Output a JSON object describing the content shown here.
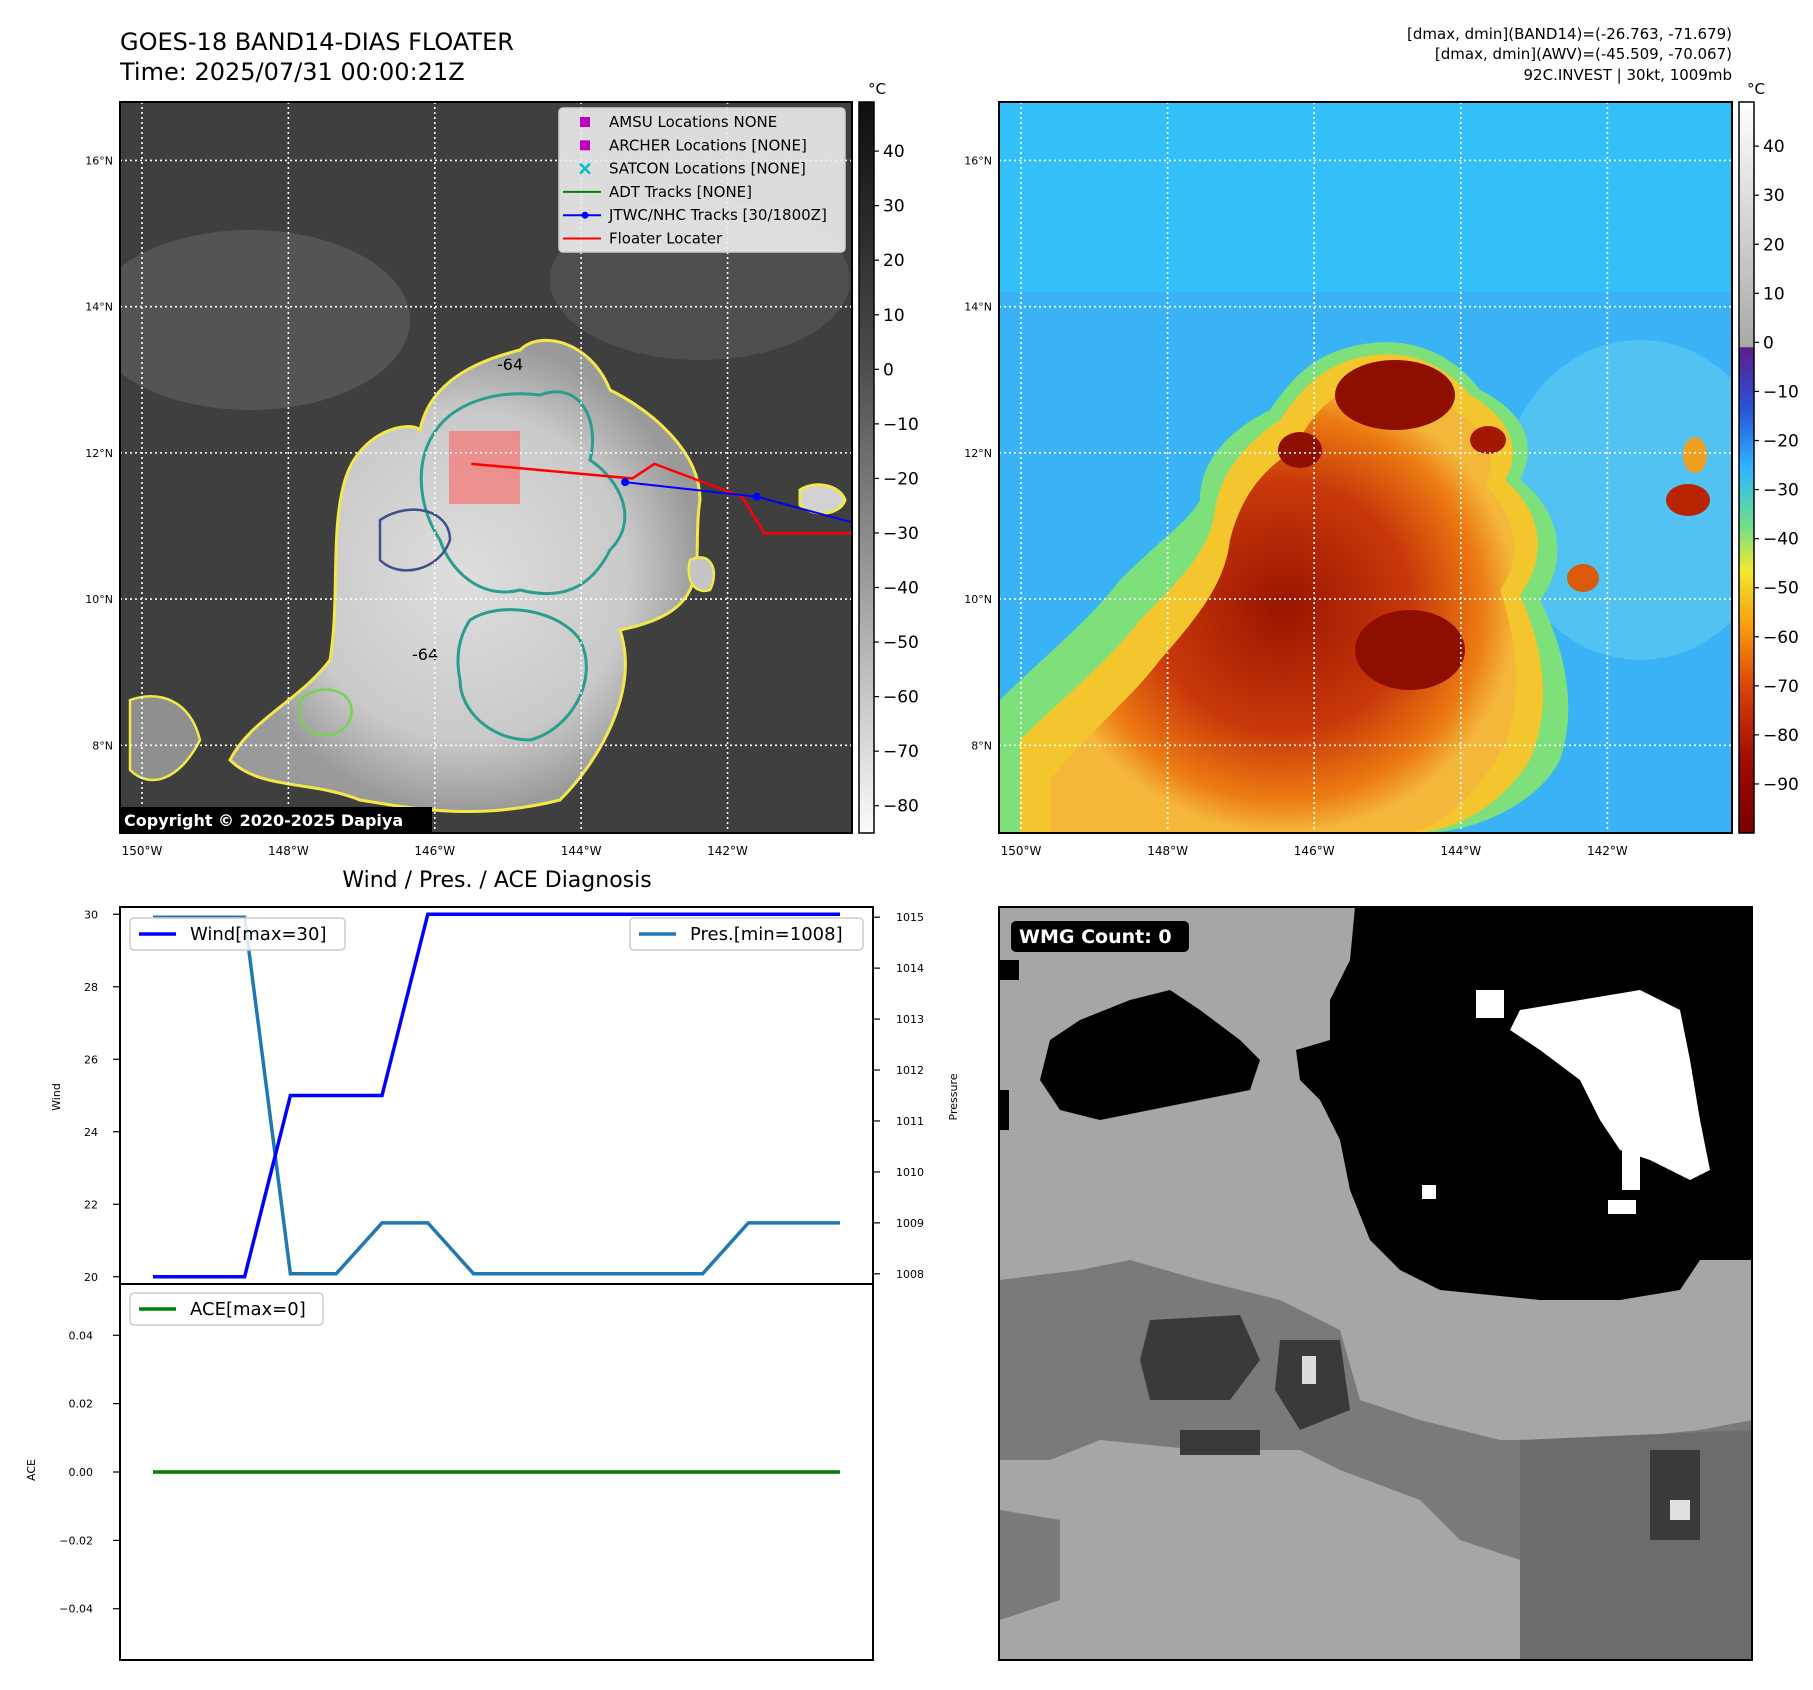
{
  "header": {
    "title": "GOES-18 BAND14-DIAS FLOATER",
    "time": "Time: 2025/07/31 00:00:21Z",
    "info": [
      "[dmax, dmin](BAND14)=(-26.763, -71.679)",
      "[dmax, dmin](AWV)=(-45.509, -70.067)",
      "92C.INVEST | 30kt, 1009mb"
    ]
  },
  "map": {
    "lat_labels": [
      "16°N",
      "14°N",
      "12°N",
      "10°N",
      "8°N"
    ],
    "lat_values": [
      16,
      14,
      12,
      10,
      8
    ],
    "lon_labels": [
      "150°W",
      "148°W",
      "146°W",
      "144°W",
      "142°W"
    ],
    "lon_values": [
      -150,
      -148,
      -146,
      -144,
      -142
    ],
    "lat_range": [
      6.8,
      16.8
    ],
    "lon_range": [
      -150.3,
      -140.3
    ],
    "copyright": "Copyright © 2020-2025 Dapiya",
    "contour_label": "-64"
  },
  "legend": [
    {
      "label": "AMSU Locations NONE",
      "marker": "square",
      "color": "#bf00bf"
    },
    {
      "label": "ARCHER Locations [NONE]",
      "marker": "square",
      "color": "#bf00bf"
    },
    {
      "label": "SATCON Locations [NONE]",
      "marker": "x",
      "color": "#00bfbf"
    },
    {
      "label": "ADT Tracks [NONE]",
      "marker": "line",
      "color": "#008000"
    },
    {
      "label": "JTWC/NHC Tracks [30/1800Z]",
      "marker": "line-dot",
      "color": "#0000ff"
    },
    {
      "label": "Floater Locater",
      "marker": "line",
      "color": "#ff0000"
    }
  ],
  "tracks": {
    "jtwc": {
      "lon": [
        -143.4,
        -141.6,
        -140.3
      ],
      "lat": [
        11.6,
        11.4,
        11.05
      ],
      "color": "#0000ff"
    },
    "floater": {
      "lon": [
        -145.5,
        -143.3,
        -143.0,
        -141.8,
        -141.5,
        -140.3
      ],
      "lat": [
        11.85,
        11.65,
        11.85,
        11.4,
        10.9,
        10.9
      ],
      "color": "#ff0000"
    }
  },
  "colorbar_gray": {
    "unit": "°C",
    "ticks": [
      "40",
      "30",
      "20",
      "10",
      "0",
      "−10",
      "−20",
      "−30",
      "−40",
      "−50",
      "−60",
      "−70",
      "−80"
    ],
    "tick_values": [
      40,
      30,
      20,
      10,
      0,
      -10,
      -20,
      -30,
      -40,
      -50,
      -60,
      -70,
      -80
    ],
    "range": [
      -85,
      49
    ]
  },
  "colorbar_awv": {
    "unit": "°C",
    "ticks": [
      "40",
      "30",
      "20",
      "10",
      "0",
      "−10",
      "−20",
      "−30",
      "−40",
      "−50",
      "−60",
      "−70",
      "−80",
      "−90"
    ],
    "tick_values": [
      40,
      30,
      20,
      10,
      0,
      -10,
      -20,
      -30,
      -40,
      -50,
      -60,
      -70,
      -80,
      -90
    ],
    "range": [
      -100,
      49
    ]
  },
  "wmg": {
    "label": "WMG Count: 0"
  },
  "chart_data": [
    {
      "type": "line",
      "title": "Wind / Pres. / ACE Diagnosis",
      "x": [
        0,
        1,
        2,
        3,
        4,
        5,
        6,
        7,
        8,
        9,
        10,
        11,
        12,
        13,
        14,
        15
      ],
      "ylabel": "Wind",
      "ylim": [
        19.8,
        30.2
      ],
      "yticks": [
        20,
        22,
        24,
        26,
        28,
        30
      ],
      "series": [
        {
          "name": "Wind[max=30]",
          "color": "#0000ff",
          "values": [
            20,
            20,
            20,
            25,
            25,
            25,
            30,
            30,
            30,
            30,
            30,
            30,
            30,
            30,
            30,
            30
          ]
        }
      ],
      "y2label": "Pressure",
      "y2lim": [
        1007.8,
        1015.2
      ],
      "y2ticks": [
        1008,
        1009,
        1010,
        1011,
        1012,
        1013,
        1014,
        1015
      ],
      "series2": [
        {
          "name": "Pres.[min=1008]",
          "color": "#1f77b4",
          "values": [
            1015,
            1015,
            1015,
            1008,
            1008,
            1009,
            1009,
            1008,
            1008,
            1008,
            1008,
            1008,
            1008,
            1009,
            1009,
            1009
          ]
        }
      ],
      "legend": "top-left / top-right"
    },
    {
      "type": "line",
      "x": [
        0,
        1,
        2,
        3,
        4,
        5,
        6,
        7,
        8,
        9,
        10,
        11,
        12,
        13,
        14,
        15
      ],
      "ylabel": "ACE",
      "ylim": [
        -0.055,
        0.055
      ],
      "yticks": [
        0.04,
        0.02,
        0.0,
        -0.02,
        -0.04
      ],
      "ytick_labels": [
        "0.04",
        "0.02",
        "0.00",
        "−0.02",
        "−0.04"
      ],
      "series": [
        {
          "name": "ACE[max=0]",
          "color": "#008000",
          "values": [
            0,
            0,
            0,
            0,
            0,
            0,
            0,
            0,
            0,
            0,
            0,
            0,
            0,
            0,
            0,
            0
          ]
        }
      ],
      "legend": "top-left"
    }
  ]
}
